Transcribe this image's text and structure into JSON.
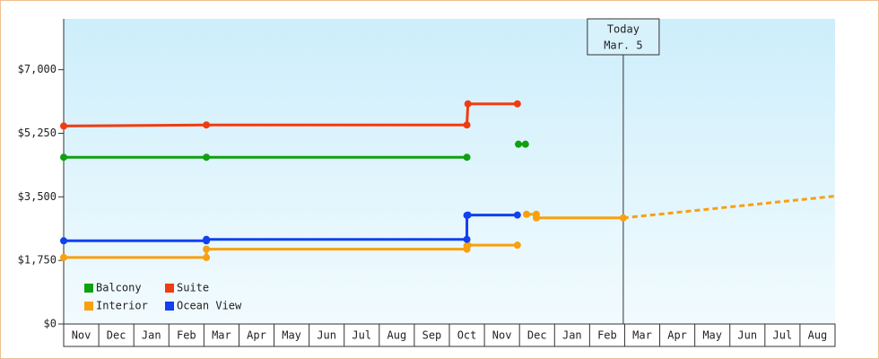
{
  "chart_data": {
    "type": "line",
    "step_points": true,
    "xlim": [
      0,
      22
    ],
    "xticks": [
      {
        "value": 0.5,
        "label": "Nov"
      },
      {
        "value": 1.5,
        "label": "Dec"
      },
      {
        "value": 2.5,
        "label": "Jan"
      },
      {
        "value": 3.5,
        "label": "Feb"
      },
      {
        "value": 4.5,
        "label": "Mar"
      },
      {
        "value": 5.5,
        "label": "Apr"
      },
      {
        "value": 6.5,
        "label": "May"
      },
      {
        "value": 7.5,
        "label": "Jun"
      },
      {
        "value": 8.5,
        "label": "Jul"
      },
      {
        "value": 9.5,
        "label": "Aug"
      },
      {
        "value": 10.5,
        "label": "Sep"
      },
      {
        "value": 11.5,
        "label": "Oct"
      },
      {
        "value": 12.5,
        "label": "Nov"
      },
      {
        "value": 13.5,
        "label": "Dec"
      },
      {
        "value": 14.5,
        "label": "Jan"
      },
      {
        "value": 15.5,
        "label": "Feb"
      },
      {
        "value": 16.5,
        "label": "Mar"
      },
      {
        "value": 17.5,
        "label": "Apr"
      },
      {
        "value": 18.5,
        "label": "May"
      },
      {
        "value": 19.5,
        "label": "Jun"
      },
      {
        "value": 20.5,
        "label": "Jul"
      },
      {
        "value": 21.5,
        "label": "Aug"
      }
    ],
    "ylim": [
      0,
      8400
    ],
    "yticks": [
      {
        "value": 0,
        "label": "$0"
      },
      {
        "value": 1750,
        "label": "$1,750"
      },
      {
        "value": 3500,
        "label": "$3,500"
      },
      {
        "value": 5250,
        "label": "$5,250"
      },
      {
        "value": 7000,
        "label": "$7,000"
      }
    ],
    "grid": false,
    "legend": "bottom-left",
    "series": [
      {
        "name": "Balcony",
        "color": "#10a010",
        "x": [
          0,
          4.07,
          11.5,
          null,
          12.97,
          13.17
        ],
        "values": [
          4590,
          4590,
          4590,
          null,
          4950,
          4950
        ]
      },
      {
        "name": "Suite",
        "color": "#f03c10",
        "x": [
          0,
          4.07,
          11.5,
          11.53,
          12.94
        ],
        "values": [
          5450,
          5480,
          5480,
          6060,
          6060
        ]
      },
      {
        "name": "Interior",
        "color": "#f8a010",
        "x": [
          0,
          4.07,
          4.07,
          11.5,
          11.5,
          11.53,
          12.94,
          null,
          13.2,
          13.48,
          13.48,
          15.96
        ],
        "values": [
          1830,
          1830,
          2060,
          2060,
          2150,
          2170,
          2170,
          null,
          3020,
          3020,
          2920,
          2920
        ],
        "forecast": {
          "x": [
            15.96,
            22
          ],
          "values": [
            2920,
            3520
          ]
        }
      },
      {
        "name": "Ocean View",
        "color": "#1040f0",
        "x": [
          0,
          4.07,
          4.07,
          11.5,
          11.5,
          11.53,
          12.94
        ],
        "values": [
          2290,
          2290,
          2330,
          2330,
          2990,
          3000,
          3000
        ]
      }
    ],
    "annotation": {
      "x": 15.96,
      "lines": [
        "Today",
        "Mar. 5"
      ]
    }
  }
}
